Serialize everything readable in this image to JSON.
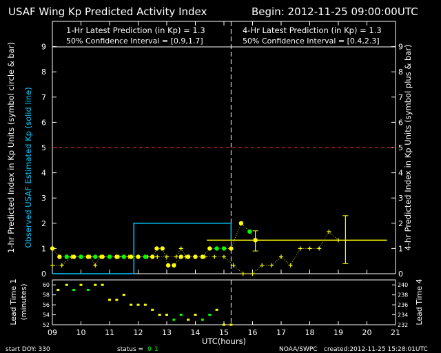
{
  "title": "USAF Wing Kp Predicted Activity Index",
  "begin_label": "Begin: 2012-11-25 09:00:00UTC",
  "header": {
    "left_line1": "1-Hr Latest Prediction (in Kp) = 1.3",
    "left_line2": "50% Confidence Interval  = [0.9,1.7]",
    "right_line1": "4-Hr Latest Prediction (in Kp) = 1.3",
    "right_line2": "50% Confidence Interval  = [0.4,2.3]"
  },
  "left_axis": {
    "label_white": "1-hr Predicted Index in Kp Units (symbol circle & bar)",
    "label_cyan": "Observed USAF Estimated Kp (solid line)"
  },
  "right_axis": {
    "label": "4-hr Predicted Index in Kp Units (symbol plus & bar)"
  },
  "lead_left_label_1": "Lead Time 1",
  "lead_left_label_2": "(minutes)",
  "lead_right_label": "Lead Time 4",
  "footer": {
    "start": "start DOY:  330",
    "status_prefix": "status =",
    "status_0": "0",
    "status_1": "1",
    "agency": "NOAA/SWPC",
    "created": "created:2012-11-25 15:28:01UTC"
  },
  "colors": {
    "prediction_1hr": "#ffff00",
    "prediction_1hr_alt": "#00ff00",
    "observed": "#00c8ff",
    "threshold": "#ff3030",
    "axes": "#ffffff",
    "status_green": "#00ff00"
  },
  "chart_data": [
    {
      "type": "scatter",
      "xlabel": "UTC(hours)",
      "ylim": [
        0,
        10
      ],
      "xlim": [
        9,
        21
      ],
      "x_ticks": [
        "09",
        "10",
        "11",
        "12",
        "13",
        "14",
        "15",
        "16",
        "17",
        "18",
        "19",
        "20",
        "21"
      ],
      "y_ticks": [
        "0",
        "1",
        "2",
        "3",
        "4",
        "5",
        "6",
        "7",
        "8",
        "9"
      ],
      "now_line_x": 15.25,
      "threshold_kp": 5,
      "series": [
        {
          "name": "1-hr predicted",
          "marker": "circle",
          "points": [
            [
              9.0,
              1.0
            ],
            [
              9.25,
              0.67
            ],
            [
              9.5,
              0.67
            ],
            [
              9.75,
              0.67
            ],
            [
              10.0,
              0.67
            ],
            [
              10.25,
              0.67
            ],
            [
              10.5,
              0.67
            ],
            [
              10.75,
              0.67
            ],
            [
              11.0,
              0.67
            ],
            [
              11.25,
              0.67
            ],
            [
              11.5,
              0.67
            ],
            [
              11.75,
              0.67
            ],
            [
              12.0,
              0.67
            ],
            [
              12.25,
              0.67
            ],
            [
              12.5,
              0.67
            ],
            [
              12.65,
              1.0
            ],
            [
              12.85,
              1.0
            ],
            [
              13.05,
              0.33
            ],
            [
              13.25,
              0.33
            ],
            [
              13.5,
              0.67
            ],
            [
              13.75,
              0.67
            ],
            [
              14.0,
              0.67
            ],
            [
              14.25,
              0.67
            ],
            [
              14.5,
              1.0
            ],
            [
              14.75,
              1.0
            ],
            [
              15.0,
              1.0
            ],
            [
              15.25,
              1.0
            ],
            [
              15.6,
              2.0
            ],
            [
              15.9,
              1.67
            ],
            [
              16.1,
              1.33
            ]
          ],
          "green_x": [
            9.5,
            10.0,
            10.5,
            11.0,
            11.5,
            12.25,
            14.75,
            15.0,
            15.9
          ],
          "error_bar": {
            "x": 16.1,
            "low": 0.9,
            "high": 1.7,
            "h_from": 14.4,
            "h_to": 20.7
          }
        },
        {
          "name": "4-hr predicted",
          "marker": "plus",
          "points": [
            [
              9.0,
              0.33
            ],
            [
              9.33,
              0.33
            ],
            [
              9.67,
              0.67
            ],
            [
              10.0,
              0.67
            ],
            [
              10.33,
              0.67
            ],
            [
              10.5,
              0.33
            ],
            [
              10.67,
              0.67
            ],
            [
              11.0,
              0.67
            ],
            [
              11.33,
              0.67
            ],
            [
              11.67,
              0.67
            ],
            [
              12.0,
              0.67
            ],
            [
              12.33,
              0.67
            ],
            [
              12.67,
              0.67
            ],
            [
              13.0,
              0.67
            ],
            [
              13.33,
              0.67
            ],
            [
              13.5,
              1.0
            ],
            [
              13.67,
              0.67
            ],
            [
              14.0,
              0.67
            ],
            [
              14.33,
              0.67
            ],
            [
              14.67,
              0.67
            ],
            [
              15.0,
              0.67
            ],
            [
              15.33,
              0.33
            ],
            [
              15.67,
              0.0
            ],
            [
              16.0,
              0.0
            ],
            [
              16.33,
              0.33
            ],
            [
              16.67,
              0.33
            ],
            [
              17.0,
              0.67
            ],
            [
              17.33,
              0.33
            ],
            [
              17.67,
              1.0
            ],
            [
              18.0,
              1.0
            ],
            [
              18.33,
              1.0
            ],
            [
              18.67,
              1.67
            ],
            [
              19.0,
              1.33
            ]
          ],
          "error_bar": {
            "x": 19.25,
            "low": 0.4,
            "high": 2.3,
            "h_from": 18.33,
            "h_to": 20.67
          }
        },
        {
          "name": "Observed Kp",
          "type": "step",
          "points": [
            [
              9.0,
              0.0
            ],
            [
              11.85,
              0.0
            ],
            [
              11.85,
              2.0
            ],
            [
              15.25,
              2.0
            ],
            [
              15.25,
              1.33
            ]
          ]
        }
      ]
    },
    {
      "type": "scatter",
      "ylim": [
        52,
        61
      ],
      "y_ticks": [
        "52",
        "54",
        "56",
        "58",
        "60"
      ],
      "y2_ticks": [
        "232",
        "234",
        "236",
        "238",
        "240"
      ],
      "series": [
        {
          "name": "Lead Time 1",
          "points": [
            [
              9.2,
              59
            ],
            [
              9.5,
              60
            ],
            [
              9.75,
              59
            ],
            [
              10.0,
              60
            ],
            [
              10.25,
              59
            ],
            [
              10.5,
              60
            ],
            [
              10.75,
              60
            ],
            [
              11.0,
              57
            ],
            [
              11.25,
              57
            ],
            [
              11.5,
              58
            ],
            [
              11.75,
              56
            ],
            [
              12.0,
              56
            ],
            [
              12.25,
              56
            ],
            [
              12.5,
              55
            ],
            [
              12.75,
              54
            ],
            [
              13.0,
              54
            ],
            [
              13.25,
              53
            ],
            [
              13.5,
              54
            ],
            [
              13.75,
              53
            ],
            [
              14.0,
              54
            ],
            [
              14.25,
              53
            ],
            [
              14.5,
              54
            ],
            [
              14.75,
              55
            ],
            [
              15.0,
              52
            ],
            [
              15.25,
              52
            ]
          ],
          "green_x": [
            9.75,
            10.25,
            13.25,
            13.5,
            14.25,
            14.5
          ]
        }
      ]
    }
  ]
}
